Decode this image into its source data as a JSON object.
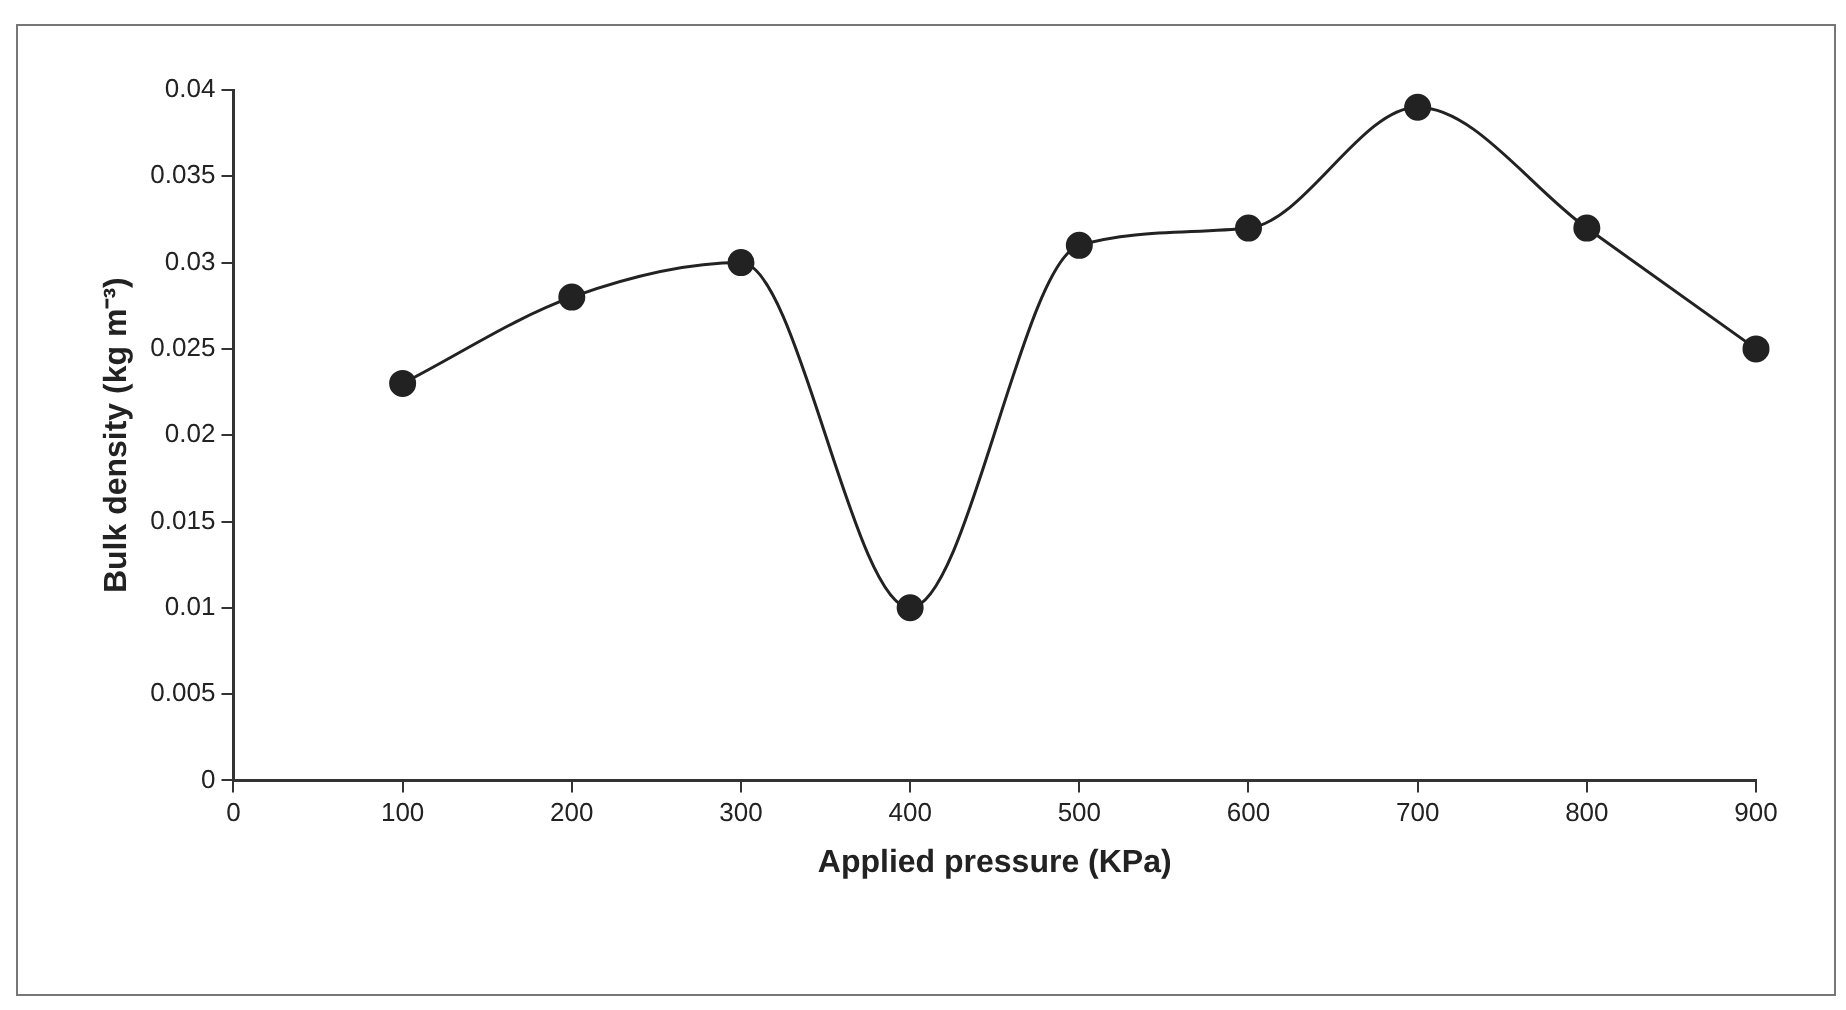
{
  "chart_data": {
    "type": "line",
    "xlabel": "Applied pressure (KPa)",
    "ylabel": "Bulk density (kg m⁻³)",
    "x": [
      100,
      200,
      300,
      400,
      500,
      600,
      700,
      800,
      900
    ],
    "series": [
      {
        "color": "#222222",
        "values": [
          0.023,
          0.028,
          0.03,
          0.01,
          0.031,
          0.032,
          0.039,
          0.032,
          0.025
        ]
      }
    ],
    "xlim": [
      0,
      900
    ],
    "xticks": [
      0,
      100,
      200,
      300,
      400,
      500,
      600,
      700,
      800,
      900
    ],
    "ylim": [
      0,
      0.04
    ],
    "yticks": [
      0,
      0.005,
      0.01,
      0.015,
      0.02,
      0.025,
      0.03,
      0.035,
      0.04
    ],
    "grid": false,
    "legend": false,
    "marker": "circle",
    "line_style": "solid"
  }
}
